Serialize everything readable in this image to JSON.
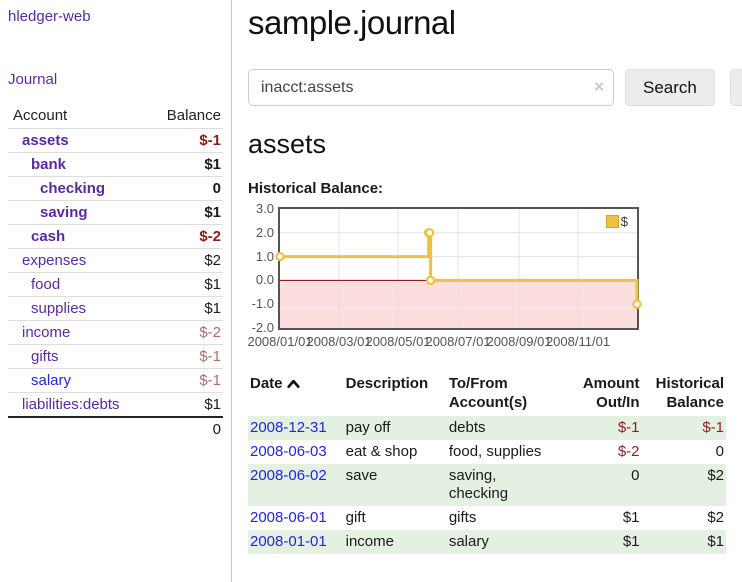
{
  "app": {
    "title": "hledger-web"
  },
  "sidebar": {
    "journal_label": "Journal",
    "accounts": {
      "header_account": "Account",
      "header_balance": "Balance",
      "rows": [
        {
          "name": "assets",
          "balance": "$-1"
        },
        {
          "name": "bank",
          "balance": "$1"
        },
        {
          "name": "checking",
          "balance": "0"
        },
        {
          "name": "saving",
          "balance": "$1"
        },
        {
          "name": "cash",
          "balance": "$-2"
        },
        {
          "name": "expenses",
          "balance": "$2"
        },
        {
          "name": "food",
          "balance": "$1"
        },
        {
          "name": "supplies",
          "balance": "$1"
        },
        {
          "name": "income",
          "balance": "$-2"
        },
        {
          "name": "gifts",
          "balance": "$-1"
        },
        {
          "name": "salary",
          "balance": "$-1"
        },
        {
          "name": "liabilities:debts",
          "balance": "$1"
        }
      ],
      "total": "0"
    }
  },
  "main": {
    "title": "sample.journal",
    "search": {
      "value": "inacct:assets",
      "clear_icon": "×",
      "button_label": "Search",
      "help_label": "?"
    },
    "account_heading": "assets",
    "register": {
      "headers": {
        "date": "Date",
        "description": "Description",
        "tofrom_line1": "To/From",
        "tofrom_line2": "Account(s)",
        "amount_line1": "Amount",
        "amount_line2": "Out/In",
        "balance_line1": "Historical",
        "balance_line2": "Balance"
      },
      "rows": [
        {
          "date": "2008-12-31",
          "description": "pay off",
          "accounts": "debts",
          "amount": "$-1",
          "balance": "$-1"
        },
        {
          "date": "2008-06-03",
          "description": "eat & shop",
          "accounts": "food, supplies",
          "amount": "$-2",
          "balance": "0"
        },
        {
          "date": "2008-06-02",
          "description": "save",
          "accounts": "saving,\nchecking",
          "amount": "0",
          "balance": "$2"
        },
        {
          "date": "2008-06-01",
          "description": "gift",
          "accounts": "gifts",
          "amount": "$1",
          "balance": "$2"
        },
        {
          "date": "2008-01-01",
          "description": "income",
          "accounts": "salary",
          "amount": "$1",
          "balance": "$1"
        }
      ]
    }
  },
  "chart_data": {
    "type": "line",
    "title": "Historical Balance:",
    "legend": "$",
    "step": true,
    "series": [
      {
        "name": "$",
        "color": "#edc240",
        "points": [
          [
            "2008-01-01",
            1
          ],
          [
            "2008-06-01",
            2
          ],
          [
            "2008-06-02",
            2
          ],
          [
            "2008-06-03",
            0
          ],
          [
            "2008-12-31",
            -1
          ]
        ]
      }
    ],
    "x_range": [
      "2008-01-01",
      "2008-12-31"
    ],
    "ylim": [
      -2,
      3
    ],
    "yticks": [
      "3.0",
      "2.0",
      "1.0",
      "0.0",
      "-1.0",
      "-2.0"
    ],
    "xticks": [
      "2008/01/01",
      "2008/03/01",
      "2008/05/01",
      "2008/07/01",
      "2008/09/01",
      "2008/11/01"
    ],
    "legend_position": "top-right",
    "grid": true,
    "negative_region_fill": "#fcdede",
    "zero_line_color": "#8b0000"
  },
  "colors": {
    "link_purple": "#5b2a9d",
    "link_blue": "#2424dd",
    "negative_strong": "#8b1c1c",
    "negative_soft": "#b56a6a",
    "series_gold": "#edc240",
    "row_green": "#e4f0e2"
  }
}
